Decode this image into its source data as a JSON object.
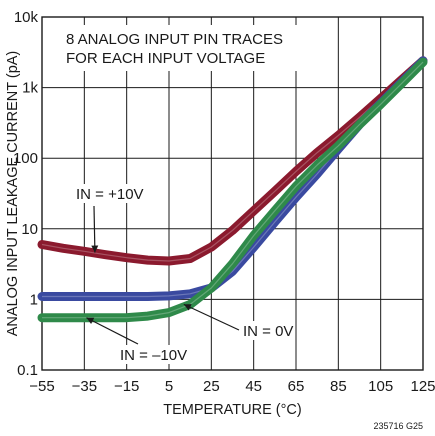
{
  "chart_data": {
    "type": "line",
    "xlabel": "TEMPERATURE (°C)",
    "ylabel": "ANALOG INPUT LEAKAGE CURRENT (pA)",
    "xlim": [
      -55,
      125
    ],
    "ylim": [
      0.1,
      10000
    ],
    "y_scale": "log",
    "grid": true,
    "x_ticks": [
      "-55",
      "-35",
      "-15",
      "5",
      "25",
      "45",
      "65",
      "85",
      "105",
      "125"
    ],
    "y_ticks": [
      "0.1",
      "1",
      "10",
      "100",
      "1k",
      "10k"
    ],
    "note_lines": [
      "8 ANALOG INPUT PIN TRACES",
      "FOR EACH INPUT VOLTAGE"
    ],
    "figure_code": "235716 G25",
    "series": [
      {
        "name": "IN = +10V",
        "color": "#8b1a2e",
        "x": [
          -55,
          -45,
          -35,
          -25,
          -15,
          -5,
          5,
          15,
          25,
          35,
          45,
          55,
          65,
          75,
          85,
          95,
          105,
          115,
          125
        ],
        "y": [
          6.0,
          5.3,
          4.8,
          4.3,
          3.9,
          3.6,
          3.5,
          3.8,
          5.5,
          9.5,
          18,
          34,
          65,
          120,
          210,
          380,
          700,
          1300,
          2400
        ]
      },
      {
        "name": "IN = 0V",
        "color": "#3a4aa0",
        "x": [
          -55,
          -45,
          -35,
          -25,
          -15,
          -5,
          5,
          15,
          25,
          35,
          45,
          55,
          65,
          75,
          85,
          95,
          105,
          115,
          125
        ],
        "y": [
          1.1,
          1.1,
          1.1,
          1.1,
          1.1,
          1.1,
          1.12,
          1.2,
          1.45,
          2.5,
          5.5,
          12.5,
          28,
          60,
          135,
          300,
          600,
          1200,
          2400
        ]
      },
      {
        "name": "IN = −10V",
        "color": "#2f8a4a",
        "x": [
          -55,
          -45,
          -35,
          -25,
          -15,
          -5,
          5,
          15,
          25,
          35,
          45,
          55,
          65,
          75,
          85,
          95,
          105,
          115,
          125
        ],
        "y": [
          0.55,
          0.55,
          0.55,
          0.55,
          0.55,
          0.58,
          0.65,
          0.85,
          1.45,
          3.2,
          8.0,
          18,
          40,
          80,
          150,
          300,
          580,
          1150,
          2300
        ]
      }
    ],
    "annotations": [
      {
        "text": "IN = +10V",
        "series": "IN = +10V",
        "x": -30,
        "y": 4.6
      },
      {
        "text": "IN = 0V",
        "series": "IN = 0V",
        "x": 12,
        "y": 0.85
      },
      {
        "text": "IN = –10V",
        "series": "IN = −10V",
        "x": -34,
        "y": 0.55
      }
    ]
  }
}
